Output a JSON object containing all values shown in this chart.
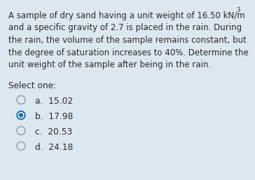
{
  "background_color": "#dce8f0",
  "question_lines": [
    "A sample of dry sand having a unit weight of 16.50 kN/m",
    "and a specific gravity of 2.7 is placed in the rain. During",
    "the rain, the volume of the sample remains constant, but",
    "the degree of saturation increases to 40%. Determine the",
    "unit weight of the sample after being in the rain."
  ],
  "superscript": "3",
  "select_one_label": "Select one:",
  "options": [
    {
      "label": "a.  15.02",
      "selected": false
    },
    {
      "label": "b.  17.98",
      "selected": true
    },
    {
      "label": "c.  20.53",
      "selected": false
    },
    {
      "label": "d.  24.18",
      "selected": false
    }
  ],
  "text_color": "#2a2a2a",
  "selected_color": "#1a6fb5",
  "unselected_color": "#999999",
  "font_size_question": 8.5,
  "font_size_options": 8.8,
  "font_size_select": 8.8,
  "superscript_fontsize": 6.0
}
